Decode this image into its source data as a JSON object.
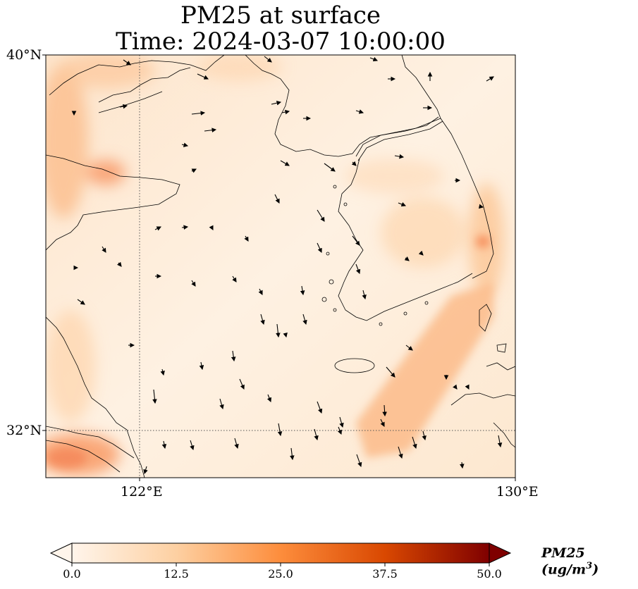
{
  "title": {
    "line1": "PM25 at surface",
    "line2": "Time: 2024-03-07 10:00:00"
  },
  "map": {
    "lon_range": [
      120,
      130
    ],
    "lat_range": [
      31,
      40
    ],
    "lat_ticks": [
      {
        "value": 40,
        "label": "40°N"
      },
      {
        "value": 32,
        "label": "32°N"
      }
    ],
    "lon_ticks": [
      {
        "value": 122,
        "label": "122°E"
      },
      {
        "value": 130,
        "label": "130°E"
      }
    ],
    "gridlines": {
      "lon": [
        122
      ],
      "lat": [
        32
      ],
      "style": "dotted"
    },
    "field": "PM25 concentration (colormap: white to dark red)",
    "hotspots_note": "higher PM25 along western edge, southwest corner, southeast diagonal band, and east coast of Korea"
  },
  "colorbar": {
    "label": "PM25 (ug/m³)",
    "label_base": "PM25 (ug/m",
    "label_sup": "3",
    "label_close": ")",
    "min": 0,
    "max": 50,
    "ticks": [
      "0.0",
      "12.5",
      "25.0",
      "37.5",
      "50.0"
    ],
    "colors": [
      "#fff5eb",
      "#fdd0a2",
      "#fd8d3c",
      "#d94801",
      "#7f0000"
    ],
    "extend": "both"
  }
}
